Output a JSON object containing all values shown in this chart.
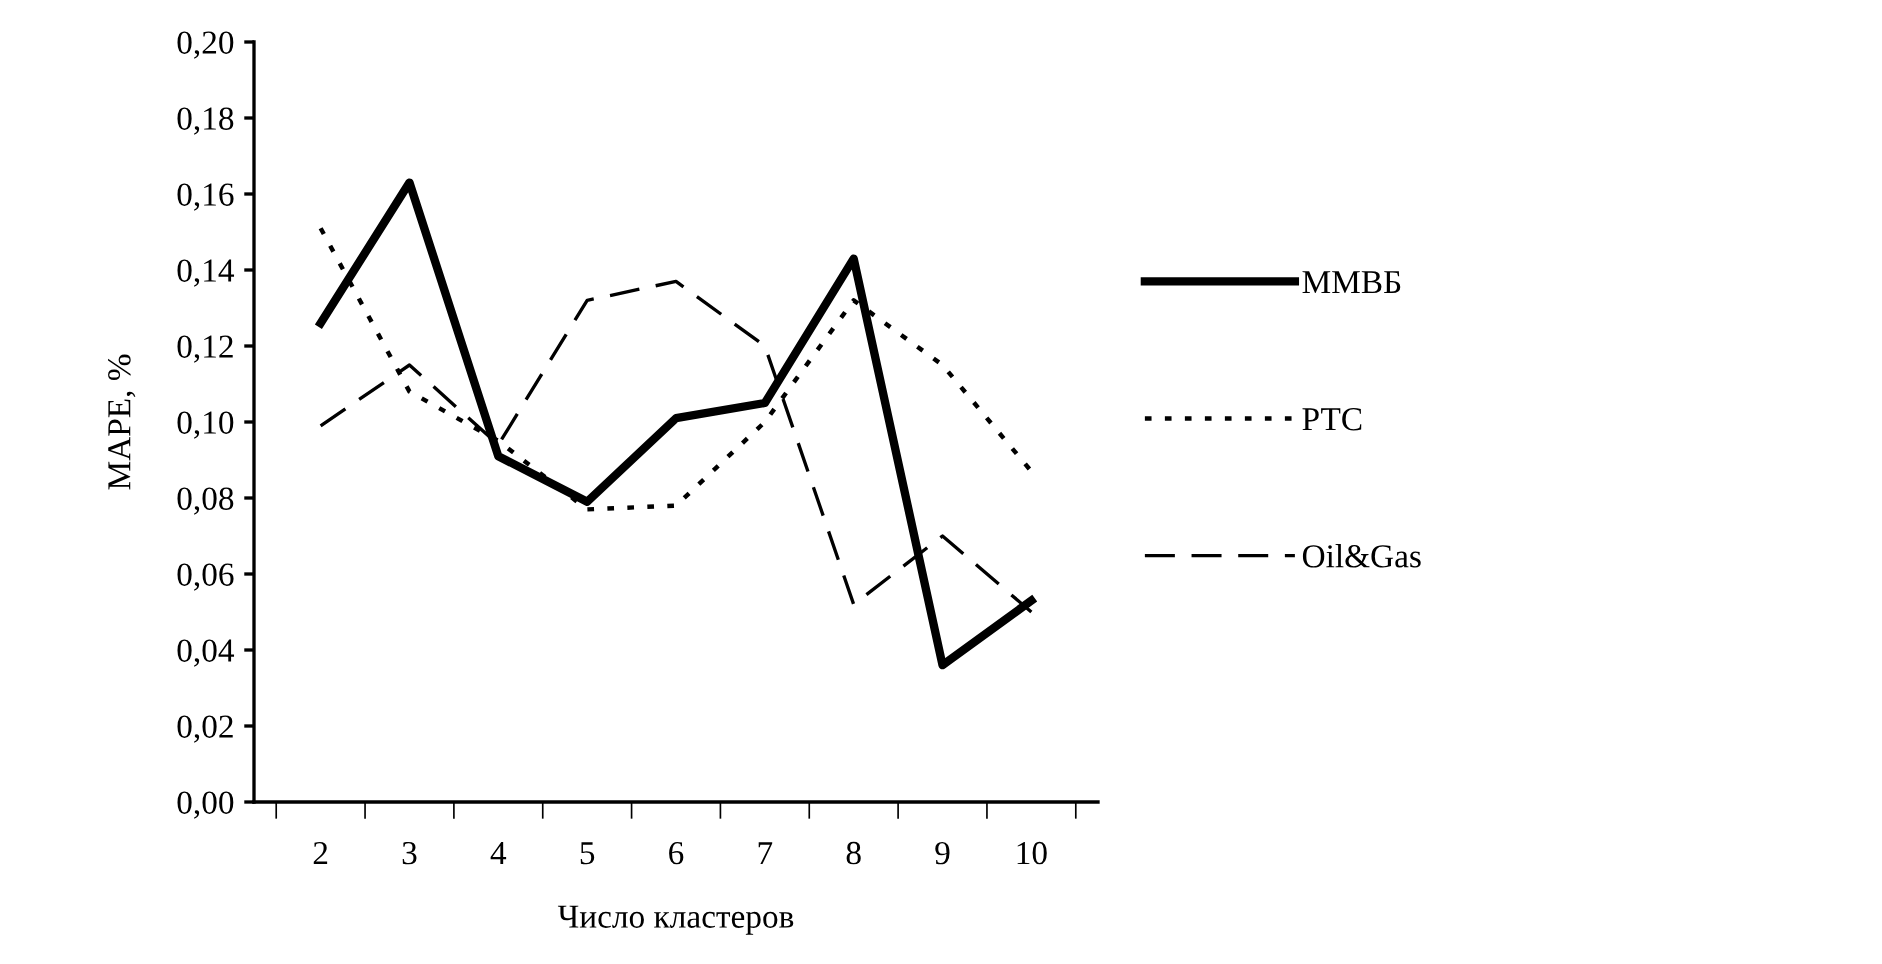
{
  "chart_data": {
    "type": "line",
    "xlabel": "Число кластеров",
    "ylabel": "MAPE, %",
    "categories": [
      "2",
      "3",
      "4",
      "5",
      "6",
      "7",
      "8",
      "9",
      "10"
    ],
    "series": [
      {
        "name": "ММВБ",
        "color": "#000000",
        "line_style": "solid",
        "values": [
          0.126,
          0.163,
          0.091,
          0.079,
          0.101,
          0.105,
          0.143,
          0.036,
          0.053
        ]
      },
      {
        "name": "РТС",
        "color": "#000000",
        "line_style": "dotted",
        "values": [
          0.151,
          0.108,
          0.095,
          0.077,
          0.078,
          0.1,
          0.132,
          0.115,
          0.087
        ]
      },
      {
        "name": "Oil&Gas",
        "color": "#000000",
        "line_style": "dashed",
        "values": [
          0.099,
          0.115,
          0.094,
          0.132,
          0.137,
          0.12,
          0.052,
          0.07,
          0.05
        ]
      }
    ],
    "ylim": [
      0,
      0.2
    ],
    "yticks": [
      {
        "value": 0,
        "label": "0,00"
      },
      {
        "value": 0.02,
        "label": "0,02"
      },
      {
        "value": 0.04,
        "label": "0,04"
      },
      {
        "value": 0.06,
        "label": "0,06"
      },
      {
        "value": 0.08,
        "label": "0,08"
      },
      {
        "value": 0.1,
        "label": "0,10"
      },
      {
        "value": 0.12,
        "label": "0,12"
      },
      {
        "value": 0.14,
        "label": "0,14"
      },
      {
        "value": 0.16,
        "label": "0,16"
      },
      {
        "value": 0.18,
        "label": "0,18"
      },
      {
        "value": 0.2,
        "label": "0,20"
      }
    ],
    "grid": false,
    "legend": "right",
    "marker": "none"
  }
}
